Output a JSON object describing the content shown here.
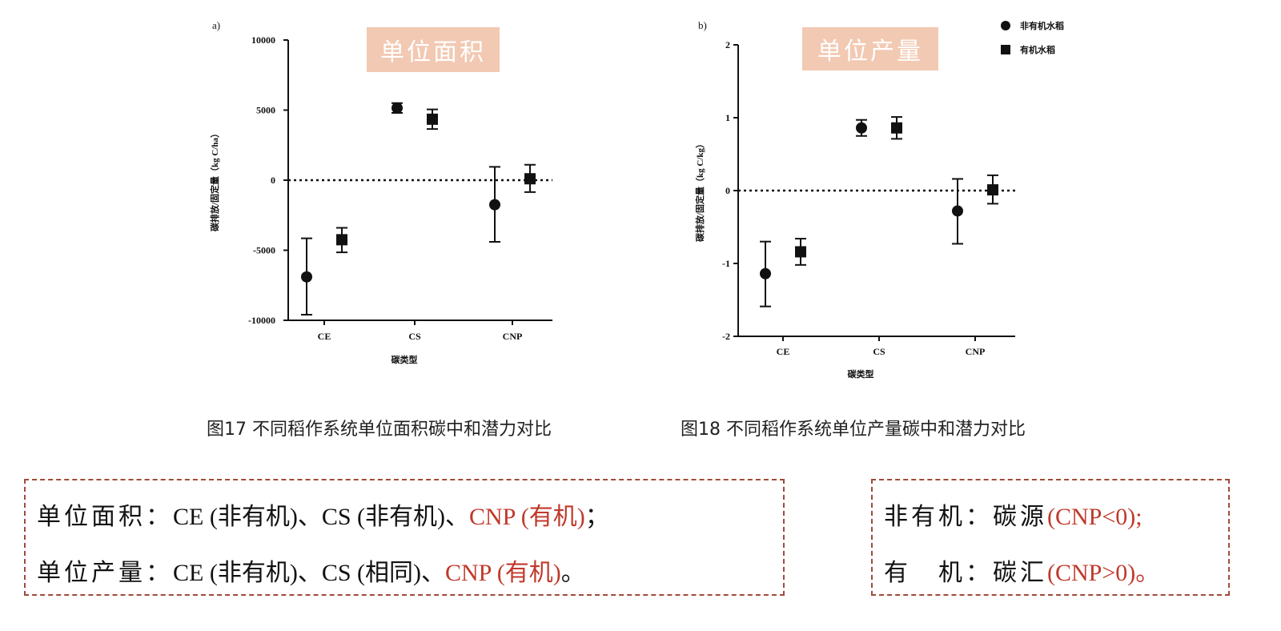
{
  "chart_data": [
    {
      "type": "scatter",
      "panel_label": "a)",
      "badge": "单位面积",
      "ylabel": "碳排放/固定量（kg C/ha）",
      "xlabel": "碳类型",
      "categories": [
        "CE",
        "CS",
        "CNP"
      ],
      "yticks": [
        "10000",
        "5000",
        "0",
        "-5000",
        "-10000"
      ],
      "ylim": [
        -10000,
        10000
      ],
      "reference_line": 0,
      "series": [
        {
          "name": "非有机水稻",
          "marker": "circle",
          "values": [
            -6900,
            5150,
            -1750
          ],
          "err_low": [
            -9600,
            4800,
            -4400
          ],
          "err_high": [
            -4150,
            5500,
            950
          ]
        },
        {
          "name": "有机水稻",
          "marker": "square",
          "values": [
            -4250,
            4350,
            100
          ],
          "err_low": [
            -5150,
            3650,
            -850
          ],
          "err_high": [
            -3400,
            5050,
            1100
          ]
        }
      ]
    },
    {
      "type": "scatter",
      "panel_label": "b)",
      "badge": "单位产量",
      "ylabel": "碳排放/固定量（kg C/kg）",
      "xlabel": "碳类型",
      "categories": [
        "CE",
        "CS",
        "CNP"
      ],
      "yticks": [
        "2",
        "1",
        "0",
        "-1",
        "-2"
      ],
      "ylim": [
        -2,
        2
      ],
      "reference_line": 0,
      "legend": [
        "非有机水稻",
        "有机水稻"
      ],
      "legend_position": "top-right",
      "series": [
        {
          "name": "非有机水稻",
          "marker": "circle",
          "values": [
            -1.14,
            0.86,
            -0.28
          ],
          "err_low": [
            -1.59,
            0.75,
            -0.73
          ],
          "err_high": [
            -0.7,
            0.97,
            0.16
          ]
        },
        {
          "name": "有机水稻",
          "marker": "square",
          "values": [
            -0.84,
            0.86,
            0.01
          ],
          "err_low": [
            -1.02,
            0.71,
            -0.18
          ],
          "err_high": [
            -0.66,
            1.01,
            0.21
          ]
        }
      ]
    }
  ],
  "captions": {
    "fig17": "图17 不同稻作系统单位面积碳中和潜力对比",
    "fig18": "图18 不同稻作系统单位产量碳中和潜力对比"
  },
  "summary_left": {
    "line1_label": "单位面积：",
    "line1_text": "CE (非有机)、CS (非有机)、",
    "line1_red": "CNP (有机)",
    "line1_end": "；",
    "line2_label": "单位产量：",
    "line2_text": "CE (非有机)、CS (相同)、",
    "line2_red": "CNP (有机)",
    "line2_end": "。"
  },
  "summary_right": {
    "line1_label": "非有机：",
    "line1_text": "碳源",
    "line1_red": "(CNP<0);",
    "line2_label": "有　机：",
    "line2_text": "碳汇",
    "line2_red": "(CNP>0)。"
  },
  "colors": {
    "badge_bg": "#f2c9b3",
    "accent_red": "#c0392b",
    "box_border": "#a14a3a"
  }
}
